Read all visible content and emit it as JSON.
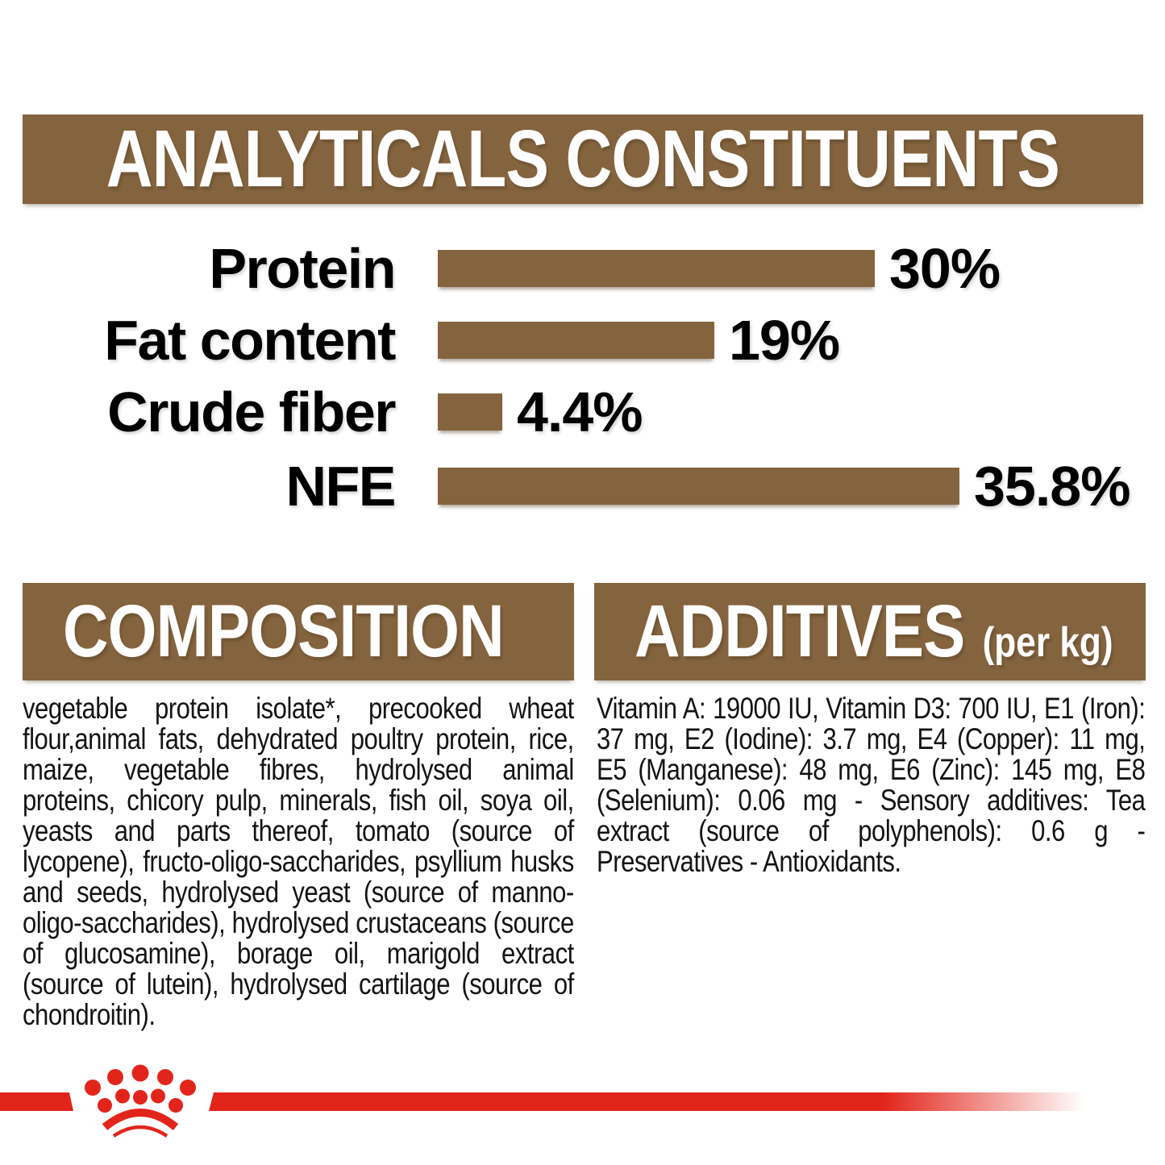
{
  "label": {
    "background_color": "#FFFFFF"
  },
  "colors": {
    "band_brown": "#84643E",
    "bar_brown": "#84643E",
    "brand_red": "#E2251B",
    "text_black": "#000000",
    "band_text_white": "#FFFFFF"
  },
  "analyticals": {
    "title": "ANALYTICALS CONSTITUENTS"
  },
  "chart_data": {
    "type": "bar",
    "orientation": "horizontal",
    "title": "ANALYTICALS CONSTITUENTS",
    "categories": [
      "Protein",
      "Fat content",
      "Crude fiber",
      "NFE"
    ],
    "values": [
      30,
      19,
      4.4,
      35.8
    ],
    "value_labels": [
      "30%",
      "19%",
      "4.4%",
      "35.8%"
    ],
    "xlim": [
      0,
      38
    ],
    "grid": false,
    "legend": false,
    "bar_color": "#84643E",
    "value_label_position": "right-of-bar"
  },
  "composition": {
    "title": "COMPOSITION",
    "text": "vegetable protein isolate*, precooked wheat flour,animal fats, dehydrated poultry protein, rice, maize, vegetable fibres, hydrolysed animal proteins, chicory pulp, minerals, fish oil, soya oil, yeasts and parts thereof, tomato (source of lycopene), fructo-oligo-saccharides, psyllium husks and seeds, hydrolysed yeast (source of manno-oligo-saccharides), hydrolysed crustaceans (source of glucosamine), borage oil, marigold extract (source of lutein), hydrolysed cartilage (source of chondroitin)."
  },
  "additives": {
    "title": "ADDITIVES",
    "unit_note": "(per kg)",
    "text": "Vitamin A: 19000 IU, Vitamin D3: 700 IU, E1 (Iron): 37 mg, E2 (Iodine): 3.7 mg, E4 (Copper): 11 mg, E5 (Manganese): 48 mg, E6 (Zinc): 145 mg, E8 (Selenium): 0.06 mg - Sensory additives: Tea extract (source of polyphenols): 0.6 g - Preservatives - Antioxidants."
  },
  "footer": {
    "brand_icon": "royal-canin-crown"
  }
}
